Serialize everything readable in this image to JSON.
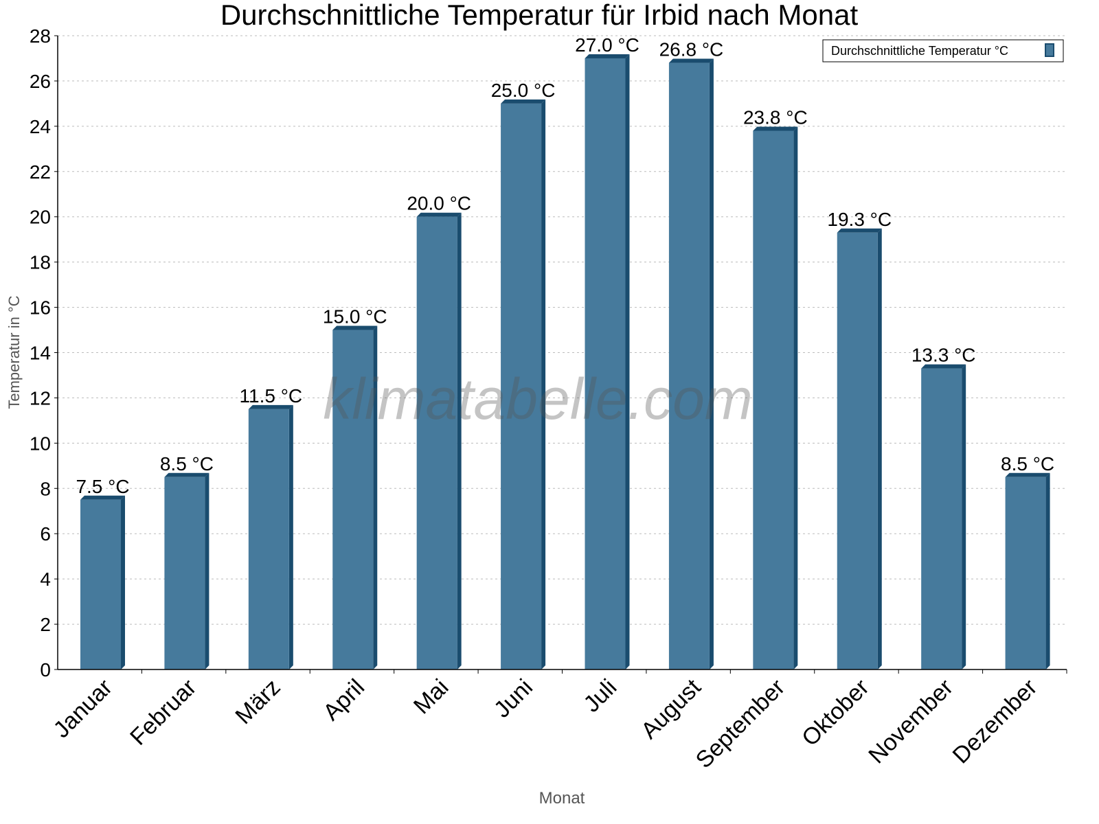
{
  "chart_data": {
    "type": "bar",
    "title": "Durchschnittliche Temperatur für Irbid nach Monat",
    "xlabel": "Monat",
    "ylabel": "Temperatur in °C",
    "categories": [
      "Januar",
      "Februar",
      "März",
      "April",
      "Mai",
      "Juni",
      "Juli",
      "August",
      "September",
      "Oktober",
      "November",
      "Dezember"
    ],
    "series": [
      {
        "name": "Durchschnittliche Temperatur °C",
        "values": [
          7.5,
          8.5,
          11.5,
          15.0,
          20.0,
          25.0,
          27.0,
          26.8,
          23.8,
          19.3,
          13.3,
          8.5
        ]
      }
    ],
    "data_labels": [
      "7.5 °C",
      "8.5 °C",
      "11.5 °C",
      "15.0 °C",
      "20.0 °C",
      "25.0 °C",
      "27.0 °C",
      "26.8 °C",
      "23.8 °C",
      "19.3 °C",
      "13.3 °C",
      "8.5 °C"
    ],
    "ylim": [
      0,
      28
    ],
    "yticks": [
      0,
      2,
      4,
      6,
      8,
      10,
      12,
      14,
      16,
      18,
      20,
      22,
      24,
      26,
      28
    ],
    "grid": true,
    "legend_position": "top-right",
    "colors": {
      "bar_front": "#467a9c",
      "bar_side": "#1a4c6e"
    },
    "watermark": "klimatabelle.com"
  }
}
